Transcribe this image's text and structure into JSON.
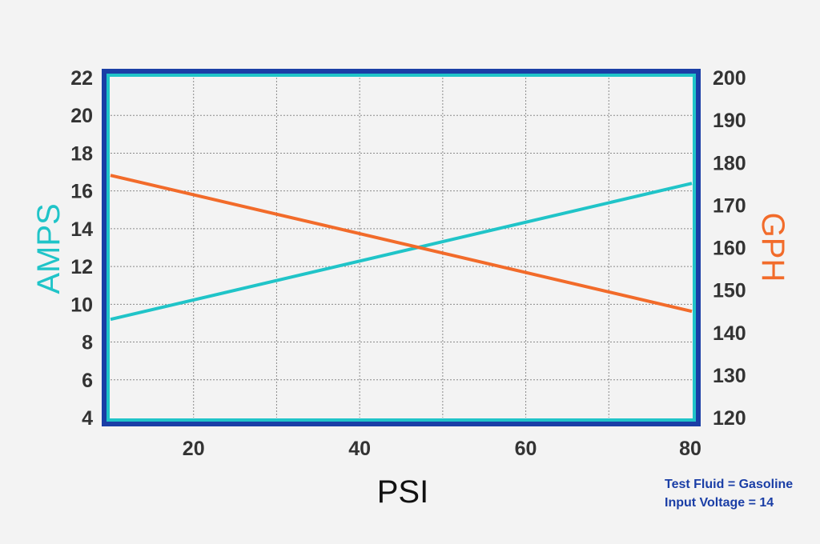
{
  "chart_data": {
    "type": "line",
    "xlabel": "PSI",
    "ylabel_left": "AMPS",
    "ylabel_right": "GPH",
    "x_ticks": [
      20,
      40,
      60,
      80
    ],
    "y_left_ticks": [
      4,
      6,
      8,
      10,
      12,
      14,
      16,
      18,
      20,
      22
    ],
    "y_right_ticks": [
      120,
      130,
      140,
      150,
      160,
      170,
      180,
      190,
      200
    ],
    "xlim": [
      10,
      80
    ],
    "ylim_left": [
      4,
      22
    ],
    "ylim_right": [
      120,
      200
    ],
    "grid": true,
    "series": [
      {
        "axis": "left",
        "x": [
          10,
          80
        ],
        "y": [
          9.2,
          16.4
        ],
        "color": "#20c4c8"
      },
      {
        "axis": "right",
        "x": [
          10,
          80
        ],
        "y": [
          177,
          145
        ],
        "color": "#f26b2a"
      }
    ]
  },
  "notes": [
    "Test Fluid = Gasoline",
    "Input Voltage = 14"
  ],
  "colors": {
    "frame": "#1a3ea6",
    "inner_frame": "#20c4c8",
    "amps": "#20c4c8",
    "gph": "#f26b2a",
    "grid": "#8a8a8a",
    "tick_text": "#333333"
  }
}
